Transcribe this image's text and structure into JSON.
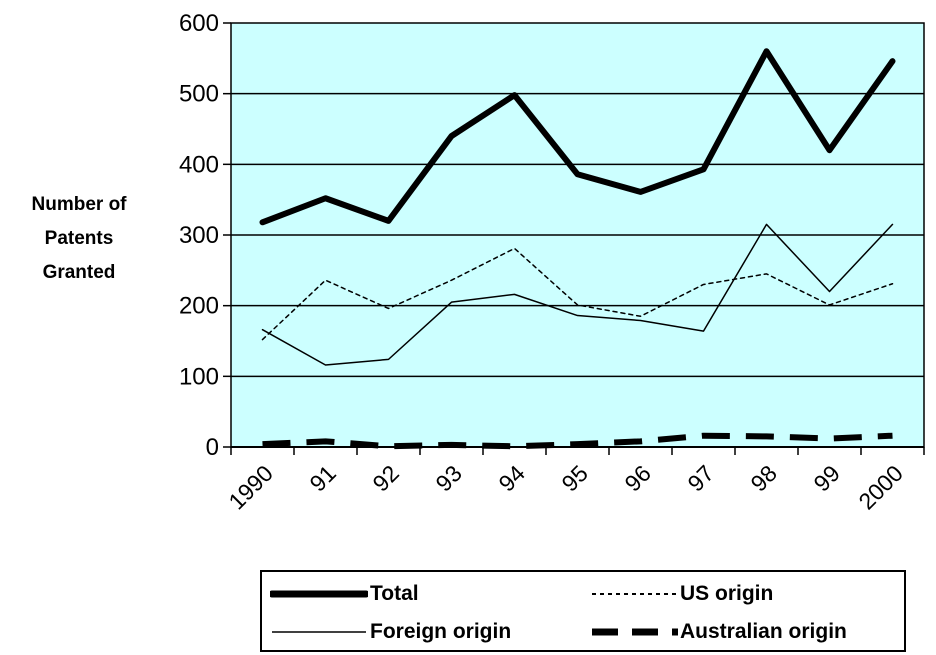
{
  "chart_data": {
    "type": "line",
    "title": "",
    "xlabel": "",
    "ylabel_lines": [
      "Number of",
      "Patents",
      "Granted"
    ],
    "categories": [
      "1990",
      "91",
      "92",
      "93",
      "94",
      "95",
      "96",
      "97",
      "98",
      "99",
      "2000"
    ],
    "ylim": [
      0,
      600
    ],
    "yticks": [
      "0",
      "100",
      "200",
      "300",
      "400",
      "500",
      "600"
    ],
    "grid": true,
    "plot_background": "#ccffff",
    "legend_position": "bottom",
    "series": [
      {
        "name": "Total",
        "style": "solid-thick",
        "values": [
          318,
          352,
          320,
          440,
          498,
          386,
          361,
          393,
          560,
          420,
          546
        ]
      },
      {
        "name": "US origin",
        "style": "dotted",
        "values": [
          152,
          236,
          196,
          236,
          281,
          201,
          185,
          230,
          245,
          201,
          231
        ]
      },
      {
        "name": "Foreign origin",
        "style": "solid-thin",
        "values": [
          166,
          116,
          124,
          205,
          216,
          186,
          179,
          164,
          315,
          220,
          315
        ]
      },
      {
        "name": "Australian origin",
        "style": "dashed-thick",
        "values": [
          4,
          8,
          1,
          3,
          1,
          4,
          8,
          16,
          15,
          12,
          16
        ]
      }
    ]
  }
}
